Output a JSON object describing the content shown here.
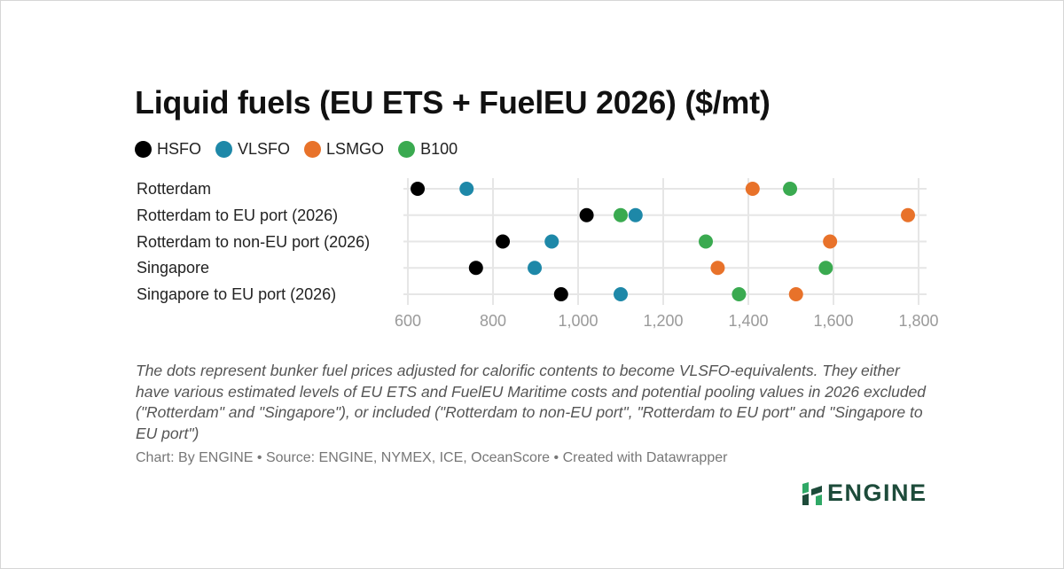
{
  "title": "Liquid fuels (EU ETS + FuelEU 2026) ($/mt)",
  "note": "The dots represent bunker fuel prices adjusted for calorific contents to become VLSFO-equivalents. They either have various estimated levels of EU ETS and FuelEU Maritime costs and potential pooling values in 2026 excluded (\"Rotterdam\" and \"Singapore\"), or included (\"Rotterdam to non-EU port\", \"Rotterdam to EU port\" and \"Singapore to EU port\")",
  "source": "Chart: By ENGINE • Source: ENGINE, NYMEX, ICE, OceanScore • Created with Datawrapper",
  "logo": {
    "text": "ENGINE",
    "color": "#1d4b3a",
    "accent": "#2fa866"
  },
  "chart_data": {
    "type": "scatter",
    "orientation": "dot-plot",
    "title": "Liquid fuels (EU ETS + FuelEU 2026) ($/mt)",
    "categories": [
      "Rotterdam",
      "Rotterdam to EU port (2026)",
      "Rotterdam to non-EU port (2026)",
      "Singapore",
      "Singapore to EU port (2026)"
    ],
    "series": [
      {
        "name": "HSFO",
        "color": "#000000",
        "values": [
          623,
          1020,
          823,
          760,
          960
        ]
      },
      {
        "name": "VLSFO",
        "color": "#1e88a8",
        "values": [
          738,
          1135,
          938,
          898,
          1100
        ]
      },
      {
        "name": "LSMGO",
        "color": "#e8722a",
        "values": [
          1410,
          1775,
          1592,
          1328,
          1512
        ]
      },
      {
        "name": "B100",
        "color": "#3aaa50",
        "values": [
          1498,
          1100,
          1300,
          1582,
          1378
        ]
      }
    ],
    "xlim": [
      600,
      1800
    ],
    "xticks": [
      600,
      800,
      1000,
      1200,
      1400,
      1600,
      1800
    ],
    "xtick_labels": [
      "600",
      "800",
      "1,000",
      "1,200",
      "1,400",
      "1,600",
      "1,800"
    ],
    "grid": true,
    "legend_position": "top-left"
  }
}
